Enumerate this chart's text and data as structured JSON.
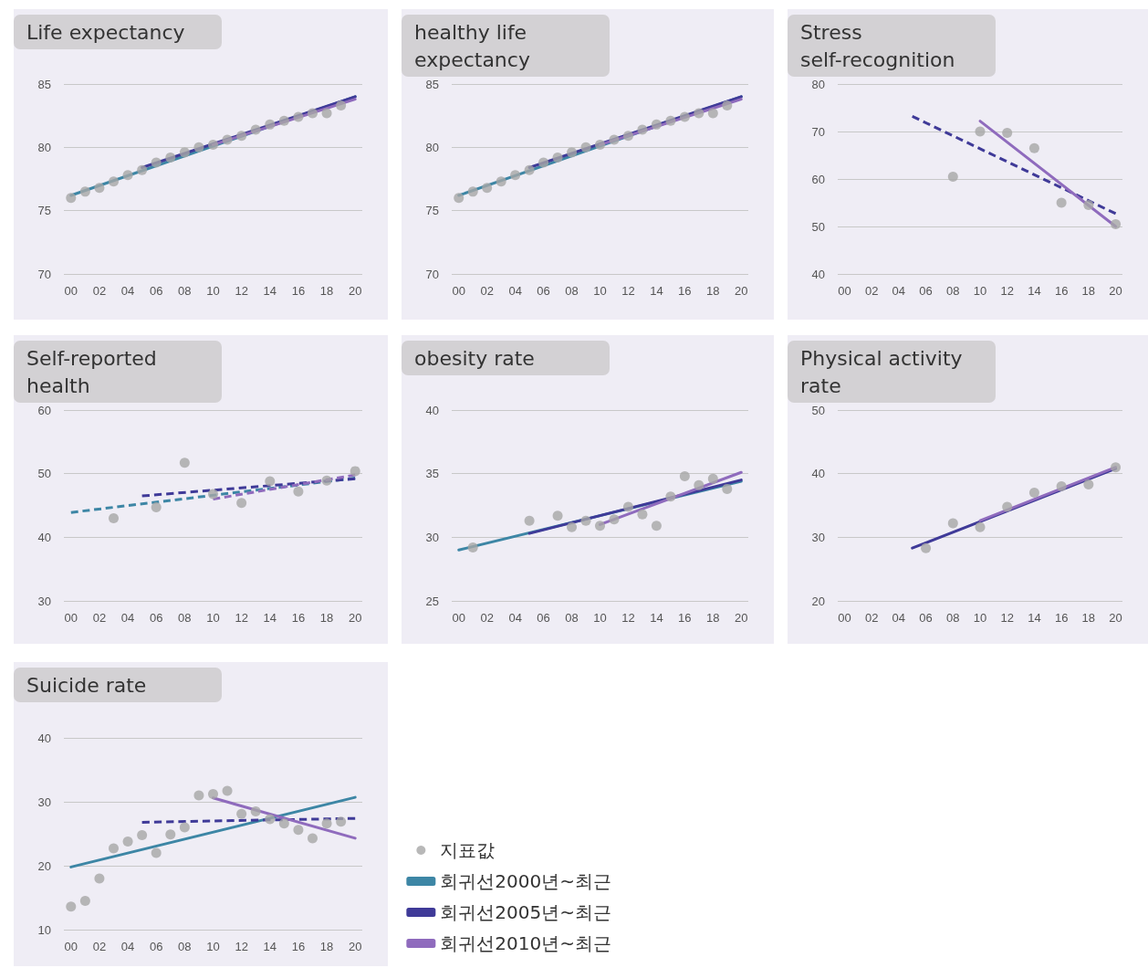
{
  "chart_data": [
    {
      "type": "scatter",
      "title": "Life expectancy",
      "xlim": [
        -0.5,
        20.5
      ],
      "xticks": [
        {
          "value": 0,
          "label": "00"
        },
        {
          "value": 2,
          "label": "02"
        },
        {
          "value": 4,
          "label": "04"
        },
        {
          "value": 6,
          "label": "06"
        },
        {
          "value": 8,
          "label": "08"
        },
        10,
        12,
        14,
        16,
        18,
        20
      ],
      "ylim": [
        70,
        85
      ],
      "yticks": [
        70,
        75,
        80,
        85
      ],
      "grid": "y",
      "series": [
        {
          "type": "line",
          "color": "#3d86a5",
          "line_style": "solid",
          "x": [
            0,
            20
          ],
          "values": [
            76.2,
            84.0
          ]
        },
        {
          "type": "line",
          "color": "#3f3a98",
          "line_style": "solid",
          "x": [
            5,
            20
          ],
          "values": [
            78.4,
            84.0
          ]
        },
        {
          "type": "line",
          "color": "#8f6bbd",
          "line_style": "solid",
          "x": [
            10,
            20
          ],
          "values": [
            80.2,
            83.8
          ]
        },
        {
          "type": "scatter",
          "color": "#a6a6a6",
          "marker": "circle",
          "x": [
            0,
            1,
            2,
            3,
            4,
            5,
            6,
            7,
            8,
            9,
            10,
            11,
            12,
            13,
            14,
            15,
            16,
            17,
            18,
            19
          ],
          "values": [
            76.0,
            76.5,
            76.8,
            77.3,
            77.8,
            78.2,
            78.8,
            79.2,
            79.6,
            80.0,
            80.2,
            80.6,
            80.9,
            81.4,
            81.8,
            82.1,
            82.4,
            82.7,
            82.7,
            83.3
          ]
        }
      ]
    },
    {
      "type": "scatter",
      "title": "healthy life expectancy",
      "xlim": [
        -0.5,
        20.5
      ],
      "xticks": [
        {
          "value": 0,
          "label": "00"
        },
        {
          "value": 2,
          "label": "02"
        },
        {
          "value": 4,
          "label": "04"
        },
        {
          "value": 6,
          "label": "06"
        },
        {
          "value": 8,
          "label": "08"
        },
        10,
        12,
        14,
        16,
        18,
        20
      ],
      "ylim": [
        70,
        85
      ],
      "yticks": [
        70,
        75,
        80,
        85
      ],
      "grid": "y",
      "series": [
        {
          "type": "line",
          "color": "#3d86a5",
          "line_style": "solid",
          "x": [
            0,
            20
          ],
          "values": [
            76.2,
            84.0
          ]
        },
        {
          "type": "line",
          "color": "#3f3a98",
          "line_style": "solid",
          "x": [
            5,
            20
          ],
          "values": [
            78.4,
            84.0
          ]
        },
        {
          "type": "line",
          "color": "#8f6bbd",
          "line_style": "solid",
          "x": [
            10,
            20
          ],
          "values": [
            80.2,
            83.8
          ]
        },
        {
          "type": "scatter",
          "color": "#a6a6a6",
          "marker": "circle",
          "x": [
            0,
            1,
            2,
            3,
            4,
            5,
            6,
            7,
            8,
            9,
            10,
            11,
            12,
            13,
            14,
            15,
            16,
            17,
            18,
            19
          ],
          "values": [
            76.0,
            76.5,
            76.8,
            77.3,
            77.8,
            78.2,
            78.8,
            79.2,
            79.6,
            80.0,
            80.2,
            80.6,
            80.9,
            81.4,
            81.8,
            82.1,
            82.4,
            82.7,
            82.7,
            83.3
          ]
        }
      ]
    },
    {
      "type": "scatter",
      "title": "Stress self-recognition",
      "xlim": [
        -0.5,
        20.5
      ],
      "xticks": [
        {
          "value": 0,
          "label": "00"
        },
        {
          "value": 2,
          "label": "02"
        },
        {
          "value": 4,
          "label": "04"
        },
        {
          "value": 6,
          "label": "06"
        },
        {
          "value": 8,
          "label": "08"
        },
        10,
        12,
        14,
        16,
        18,
        20
      ],
      "ylim": [
        40,
        80
      ],
      "yticks": [
        40,
        50,
        60,
        70,
        80
      ],
      "grid": "y",
      "series": [
        {
          "type": "line",
          "color": "#3f3a98",
          "line_style": "dashed",
          "x": [
            5,
            20
          ],
          "values": [
            73.2,
            52.7
          ]
        },
        {
          "type": "line",
          "color": "#8f6bbd",
          "line_style": "solid",
          "x": [
            10,
            20
          ],
          "values": [
            72.2,
            50.0
          ]
        },
        {
          "type": "scatter",
          "color": "#a6a6a6",
          "marker": "circle",
          "x": [
            8,
            10,
            12,
            14,
            16,
            18,
            20
          ],
          "values": [
            60.5,
            70.0,
            69.7,
            66.5,
            55.0,
            54.5,
            50.5
          ]
        }
      ]
    },
    {
      "type": "scatter",
      "title": "Self-reported health",
      "xlim": [
        -0.5,
        20.5
      ],
      "xticks": [
        {
          "value": 0,
          "label": "00"
        },
        {
          "value": 2,
          "label": "02"
        },
        {
          "value": 4,
          "label": "04"
        },
        {
          "value": 6,
          "label": "06"
        },
        {
          "value": 8,
          "label": "08"
        },
        10,
        12,
        14,
        16,
        18,
        20
      ],
      "ylim": [
        30,
        60
      ],
      "yticks": [
        30,
        40,
        50,
        60
      ],
      "grid": "y",
      "series": [
        {
          "type": "line",
          "color": "#3d86a5",
          "line_style": "dashed",
          "x": [
            0,
            20
          ],
          "values": [
            43.9,
            49.3
          ]
        },
        {
          "type": "line",
          "color": "#3f3a98",
          "line_style": "dashed",
          "x": [
            5,
            20
          ],
          "values": [
            46.5,
            49.2
          ]
        },
        {
          "type": "line",
          "color": "#8f6bbd",
          "line_style": "dashed",
          "x": [
            10,
            20
          ],
          "values": [
            46.0,
            49.8
          ]
        },
        {
          "type": "scatter",
          "color": "#a6a6a6",
          "marker": "circle",
          "x": [
            3,
            6,
            8,
            10,
            12,
            14,
            16,
            18,
            20
          ],
          "values": [
            43.0,
            44.7,
            51.7,
            46.8,
            45.4,
            48.8,
            47.2,
            48.9,
            50.4
          ]
        }
      ]
    },
    {
      "type": "scatter",
      "title": "obesity rate",
      "xlim": [
        -0.5,
        20.5
      ],
      "xticks": [
        {
          "value": 0,
          "label": "00"
        },
        {
          "value": 2,
          "label": "02"
        },
        {
          "value": 4,
          "label": "04"
        },
        {
          "value": 6,
          "label": "06"
        },
        {
          "value": 8,
          "label": "08"
        },
        10,
        12,
        14,
        16,
        18,
        20
      ],
      "ylim": [
        25,
        40
      ],
      "yticks": [
        25,
        30,
        35,
        40
      ],
      "grid": "y",
      "series": [
        {
          "type": "line",
          "color": "#3d86a5",
          "line_style": "solid",
          "x": [
            0,
            20
          ],
          "values": [
            29.0,
            34.4
          ]
        },
        {
          "type": "line",
          "color": "#3f3a98",
          "line_style": "solid",
          "x": [
            5,
            20
          ],
          "values": [
            30.3,
            34.5
          ]
        },
        {
          "type": "line",
          "color": "#8f6bbd",
          "line_style": "solid",
          "x": [
            10,
            20
          ],
          "values": [
            31.0,
            35.1
          ]
        },
        {
          "type": "scatter",
          "color": "#a6a6a6",
          "marker": "circle",
          "x": [
            1,
            5,
            7,
            8,
            9,
            10,
            11,
            12,
            13,
            14,
            15,
            16,
            17,
            18,
            19
          ],
          "values": [
            29.2,
            31.3,
            31.7,
            30.8,
            31.3,
            30.9,
            31.4,
            32.4,
            31.8,
            30.9,
            33.2,
            34.8,
            34.1,
            34.6,
            33.8
          ]
        }
      ]
    },
    {
      "type": "scatter",
      "title": "Physical activity rate",
      "xlim": [
        -0.5,
        20.5
      ],
      "xticks": [
        {
          "value": 0,
          "label": "00"
        },
        {
          "value": 2,
          "label": "02"
        },
        {
          "value": 4,
          "label": "04"
        },
        {
          "value": 6,
          "label": "06"
        },
        {
          "value": 8,
          "label": "08"
        },
        10,
        12,
        14,
        16,
        18,
        20
      ],
      "ylim": [
        20,
        50
      ],
      "yticks": [
        20,
        30,
        40,
        50
      ],
      "grid": "y",
      "series": [
        {
          "type": "line",
          "color": "#3f3a98",
          "line_style": "solid",
          "x": [
            5,
            20
          ],
          "values": [
            28.3,
            40.8
          ]
        },
        {
          "type": "line",
          "color": "#8f6bbd",
          "line_style": "solid",
          "x": [
            10,
            20
          ],
          "values": [
            32.6,
            41.0
          ]
        },
        {
          "type": "scatter",
          "color": "#a6a6a6",
          "marker": "circle",
          "x": [
            6,
            8,
            10,
            12,
            14,
            16,
            18,
            20
          ],
          "values": [
            28.3,
            32.2,
            31.6,
            34.8,
            37.0,
            38.0,
            38.3,
            41.0
          ]
        }
      ]
    },
    {
      "type": "scatter",
      "title": "Suicide rate",
      "xlim": [
        -0.5,
        20.5
      ],
      "xticks": [
        {
          "value": 0,
          "label": "00"
        },
        {
          "value": 2,
          "label": "02"
        },
        {
          "value": 4,
          "label": "04"
        },
        {
          "value": 6,
          "label": "06"
        },
        {
          "value": 8,
          "label": "08"
        },
        10,
        12,
        14,
        16,
        18,
        20
      ],
      "ylim": [
        10,
        40
      ],
      "yticks": [
        10,
        20,
        30,
        40
      ],
      "grid": "y",
      "legend": "right",
      "series": [
        {
          "type": "scatter",
          "name": "지표값",
          "color": "#a6a6a6",
          "marker": "circle",
          "x": [
            0,
            1,
            2,
            3,
            4,
            5,
            6,
            7,
            8,
            9,
            10,
            11,
            12,
            13,
            14,
            15,
            16,
            17,
            18,
            19
          ],
          "values": [
            13.6,
            14.5,
            18.0,
            22.7,
            23.8,
            24.8,
            22.0,
            24.9,
            26.0,
            31.0,
            31.2,
            31.7,
            28.1,
            28.5,
            27.3,
            26.6,
            25.6,
            24.3,
            26.6,
            26.9
          ]
        },
        {
          "type": "line",
          "name": "회귀선2000년~최근",
          "color": "#3d86a5",
          "line_style": "solid",
          "x": [
            0,
            20
          ],
          "values": [
            19.8,
            30.7
          ]
        },
        {
          "type": "line",
          "name": "회귀선2005년~최근",
          "color": "#3f3a98",
          "line_style": "dashed",
          "x": [
            5,
            20
          ],
          "values": [
            26.8,
            27.4
          ]
        },
        {
          "type": "line",
          "name": "회귀선2010년~최근",
          "color": "#8f6bbd",
          "line_style": "solid",
          "x": [
            10,
            20
          ],
          "values": [
            30.6,
            24.3
          ]
        }
      ]
    }
  ]
}
